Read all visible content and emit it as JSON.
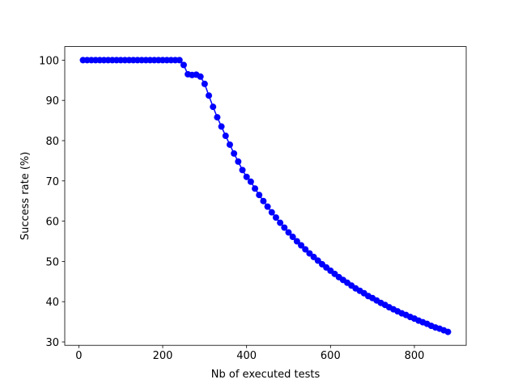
{
  "chart_data": {
    "type": "line",
    "x_label": "Nb of executed tests",
    "y_label": "Success rate (%)",
    "x": [
      10,
      20,
      30,
      40,
      50,
      60,
      70,
      80,
      90,
      100,
      110,
      120,
      130,
      140,
      150,
      160,
      170,
      180,
      190,
      200,
      210,
      220,
      230,
      240,
      250,
      260,
      270,
      280,
      290,
      300,
      310,
      320,
      330,
      340,
      350,
      360,
      370,
      380,
      390,
      400,
      410,
      420,
      430,
      440,
      450,
      460,
      470,
      480,
      490,
      500,
      510,
      520,
      530,
      540,
      550,
      560,
      570,
      580,
      590,
      600,
      610,
      620,
      630,
      640,
      650,
      660,
      670,
      680,
      690,
      700,
      710,
      720,
      730,
      740,
      750,
      760,
      770,
      780,
      790,
      800,
      810,
      820,
      830,
      840,
      850,
      860,
      870,
      880
    ],
    "series": [
      {
        "color": "#0000ff",
        "values": [
          100,
          100,
          100,
          100,
          100,
          100,
          100,
          100,
          100,
          100,
          100,
          100,
          100,
          100,
          100,
          100,
          100,
          100,
          100,
          100,
          100,
          100,
          100,
          100,
          98.8,
          96.5,
          96.3,
          96.4,
          95.9,
          94.1,
          91.2,
          88.4,
          85.8,
          83.5,
          81.2,
          79.0,
          76.8,
          74.8,
          72.7,
          71.0,
          69.8,
          68.1,
          66.5,
          65.0,
          63.6,
          62.2,
          60.9,
          59.6,
          58.4,
          57.2,
          56.1,
          55.0,
          54.0,
          53.0,
          52.0,
          51.1,
          50.2,
          49.3,
          48.5,
          47.7,
          46.9,
          46.1,
          45.4,
          44.7,
          44.0,
          43.3,
          42.7,
          42.1,
          41.4,
          40.9,
          40.3,
          39.7,
          39.2,
          38.6,
          38.1,
          37.6,
          37.1,
          36.7,
          36.2,
          35.8,
          35.3,
          34.9,
          34.5,
          34.0,
          33.6,
          33.3,
          32.9,
          32.5
        ]
      }
    ],
    "xlim": [
      -33.5,
      923.5
    ],
    "xticks": [
      0,
      200,
      400,
      600,
      800
    ],
    "ylim": [
      29.16,
      103.37
    ],
    "yticks": [
      30,
      40,
      50,
      60,
      70,
      80,
      90,
      100
    ],
    "grid": false,
    "markers": true
  }
}
